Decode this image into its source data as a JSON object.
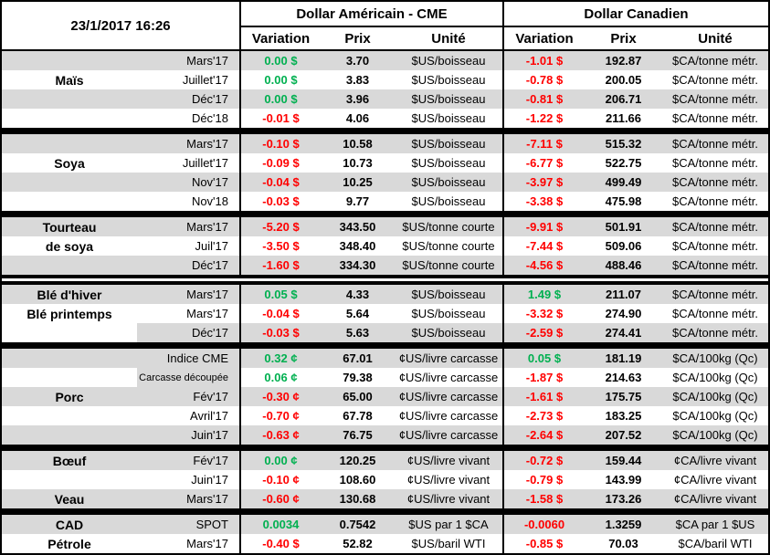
{
  "meta": {
    "timestamp": "23/1/2017 16:26"
  },
  "header": {
    "us_title": "Dollar Américain - CME",
    "ca_title": "Dollar Canadien",
    "columns": {
      "variation": "Variation",
      "prix": "Prix",
      "unite": "Unité"
    }
  },
  "colors": {
    "positive": "#00B050",
    "negative": "#FF0000",
    "stripe": "#D9D9D9",
    "grid": "#000000"
  },
  "groups": [
    {
      "sep": "single",
      "rows": [
        {
          "name": "",
          "month": "Mars'17",
          "uv": "0.00 $",
          "ud": "pos",
          "up": "3.70",
          "uu": "$US/boisseau",
          "cv": "-1.01 $",
          "cd": "neg",
          "cp": "192.87",
          "cu": "$CA/tonne métr."
        },
        {
          "name": "Maïs",
          "month": "Juillet'17",
          "uv": "0.00 $",
          "ud": "pos",
          "up": "3.83",
          "uu": "$US/boisseau",
          "cv": "-0.78 $",
          "cd": "neg",
          "cp": "200.05",
          "cu": "$CA/tonne métr."
        },
        {
          "name": "",
          "month": "Déc'17",
          "uv": "0.00 $",
          "ud": "pos",
          "up": "3.96",
          "uu": "$US/boisseau",
          "cv": "-0.81 $",
          "cd": "neg",
          "cp": "206.71",
          "cu": "$CA/tonne métr."
        },
        {
          "name": "",
          "month": "Déc'18",
          "uv": "-0.01 $",
          "ud": "neg",
          "up": "4.06",
          "uu": "$US/boisseau",
          "cv": "-1.22 $",
          "cd": "neg",
          "cp": "211.66",
          "cu": "$CA/tonne métr."
        }
      ]
    },
    {
      "sep": "single",
      "rows": [
        {
          "name": "",
          "month": "Mars'17",
          "uv": "-0.10 $",
          "ud": "neg",
          "up": "10.58",
          "uu": "$US/boisseau",
          "cv": "-7.11 $",
          "cd": "neg",
          "cp": "515.32",
          "cu": "$CA/tonne métr."
        },
        {
          "name": "Soya",
          "month": "Juillet'17",
          "uv": "-0.09 $",
          "ud": "neg",
          "up": "10.73",
          "uu": "$US/boisseau",
          "cv": "-6.77 $",
          "cd": "neg",
          "cp": "522.75",
          "cu": "$CA/tonne métr."
        },
        {
          "name": "",
          "month": "Nov'17",
          "uv": "-0.04 $",
          "ud": "neg",
          "up": "10.25",
          "uu": "$US/boisseau",
          "cv": "-3.97 $",
          "cd": "neg",
          "cp": "499.49",
          "cu": "$CA/tonne métr."
        },
        {
          "name": "",
          "month": "Nov'18",
          "uv": "-0.03 $",
          "ud": "neg",
          "up": "9.77",
          "uu": "$US/boisseau",
          "cv": "-3.38 $",
          "cd": "neg",
          "cp": "475.98",
          "cu": "$CA/tonne métr."
        }
      ]
    },
    {
      "sep": "double",
      "rows": [
        {
          "name": "Tourteau",
          "month": "Mars'17",
          "uv": "-5.20 $",
          "ud": "neg",
          "up": "343.50",
          "uu": "$US/tonne courte",
          "cv": "-9.91 $",
          "cd": "neg",
          "cp": "501.91",
          "cu": "$CA/tonne métr."
        },
        {
          "name": "de soya",
          "month": "Juil'17",
          "uv": "-3.50 $",
          "ud": "neg",
          "up": "348.40",
          "uu": "$US/tonne courte",
          "cv": "-7.44 $",
          "cd": "neg",
          "cp": "509.06",
          "cu": "$CA/tonne métr."
        },
        {
          "name": "",
          "month": "Déc'17",
          "uv": "-1.60 $",
          "ud": "neg",
          "up": "334.30",
          "uu": "$US/tonne courte",
          "cv": "-4.56 $",
          "cd": "neg",
          "cp": "488.46",
          "cu": "$CA/tonne métr."
        }
      ]
    },
    {
      "sep": "single",
      "rows": [
        {
          "name": "Blé d'hiver",
          "month": "Mars'17",
          "uv": "0.05 $",
          "ud": "pos",
          "up": "4.33",
          "uu": "$US/boisseau",
          "cv": "1.49 $",
          "cd": "pos",
          "cp": "211.07",
          "cu": "$CA/tonne métr."
        },
        {
          "name": "Blé printemps",
          "month": "Mars'17",
          "uv": "-0.04 $",
          "ud": "neg",
          "up": "5.64",
          "uu": "$US/boisseau",
          "cv": "-3.32 $",
          "cd": "neg",
          "cp": "274.90",
          "cu": "$CA/tonne métr."
        },
        {
          "name": "",
          "name_white": true,
          "month": "Déc'17",
          "uv": "-0.03 $",
          "ud": "neg",
          "up": "5.63",
          "uu": "$US/boisseau",
          "cv": "-2.59 $",
          "cd": "neg",
          "cp": "274.41",
          "cu": "$CA/tonne métr."
        }
      ]
    },
    {
      "sep": "single",
      "rows": [
        {
          "name": "",
          "month": "Indice CME",
          "uv": "0.32 ¢",
          "ud": "pos",
          "up": "67.01",
          "uu": "¢US/livre carcasse",
          "cv": "0.05 $",
          "cd": "pos",
          "cp": "181.19",
          "cu": "$CA/100kg (Qc)"
        },
        {
          "name": "",
          "month": "Carcasse découpée",
          "month_small": true,
          "month_shaded": true,
          "uv": "0.06 ¢",
          "ud": "pos",
          "up": "79.38",
          "uu": "¢US/livre carcasse",
          "cv": "-1.87 $",
          "cd": "neg",
          "cp": "214.63",
          "cu": "$CA/100kg (Qc)"
        },
        {
          "name": "Porc",
          "month": "Fév'17",
          "uv": "-0.30 ¢",
          "ud": "neg",
          "up": "65.00",
          "uu": "¢US/livre carcasse",
          "cv": "-1.61 $",
          "cd": "neg",
          "cp": "175.75",
          "cu": "$CA/100kg (Qc)"
        },
        {
          "name": "",
          "month": "Avril'17",
          "uv": "-0.70 ¢",
          "ud": "neg",
          "up": "67.78",
          "uu": "¢US/livre carcasse",
          "cv": "-2.73 $",
          "cd": "neg",
          "cp": "183.25",
          "cu": "$CA/100kg (Qc)"
        },
        {
          "name": "",
          "month": "Juin'17",
          "uv": "-0.63 ¢",
          "ud": "neg",
          "up": "76.75",
          "uu": "¢US/livre carcasse",
          "cv": "-2.64 $",
          "cd": "neg",
          "cp": "207.52",
          "cu": "$CA/100kg (Qc)"
        }
      ]
    },
    {
      "sep": "single",
      "rows": [
        {
          "name": "Bœuf",
          "month": "Fév'17",
          "uv": "0.00 ¢",
          "ud": "pos",
          "up": "120.25",
          "uu": "¢US/livre vivant",
          "cv": "-0.72 $",
          "cd": "neg",
          "cp": "159.44",
          "cu": "¢CA/livre vivant"
        },
        {
          "name": "",
          "month": "Juin'17",
          "uv": "-0.10 ¢",
          "ud": "neg",
          "up": "108.60",
          "uu": "¢US/livre vivant",
          "cv": "-0.79 $",
          "cd": "neg",
          "cp": "143.99",
          "cu": "¢CA/livre vivant"
        },
        {
          "name": "Veau",
          "month": "Mars'17",
          "uv": "-0.60 ¢",
          "ud": "neg",
          "up": "130.68",
          "uu": "¢US/livre vivant",
          "cv": "-1.58 $",
          "cd": "neg",
          "cp": "173.26",
          "cu": "¢CA/livre vivant"
        }
      ]
    },
    {
      "sep": null,
      "rows": [
        {
          "name": "CAD",
          "month": "SPOT",
          "uv": "0.0034",
          "ud": "pos",
          "up": "0.7542",
          "uu": "$US par 1 $CA",
          "cv": "-0.0060",
          "cd": "neg",
          "cp": "1.3259",
          "cu": "$CA par 1 $US"
        },
        {
          "name": "Pétrole",
          "month": "Mars'17",
          "uv": "-0.40 $",
          "ud": "neg",
          "up": "52.82",
          "uu": "$US/baril WTI",
          "cv": "-0.85 $",
          "cd": "neg",
          "cp": "70.03",
          "cu": "$CA/baril WTI"
        }
      ]
    }
  ]
}
